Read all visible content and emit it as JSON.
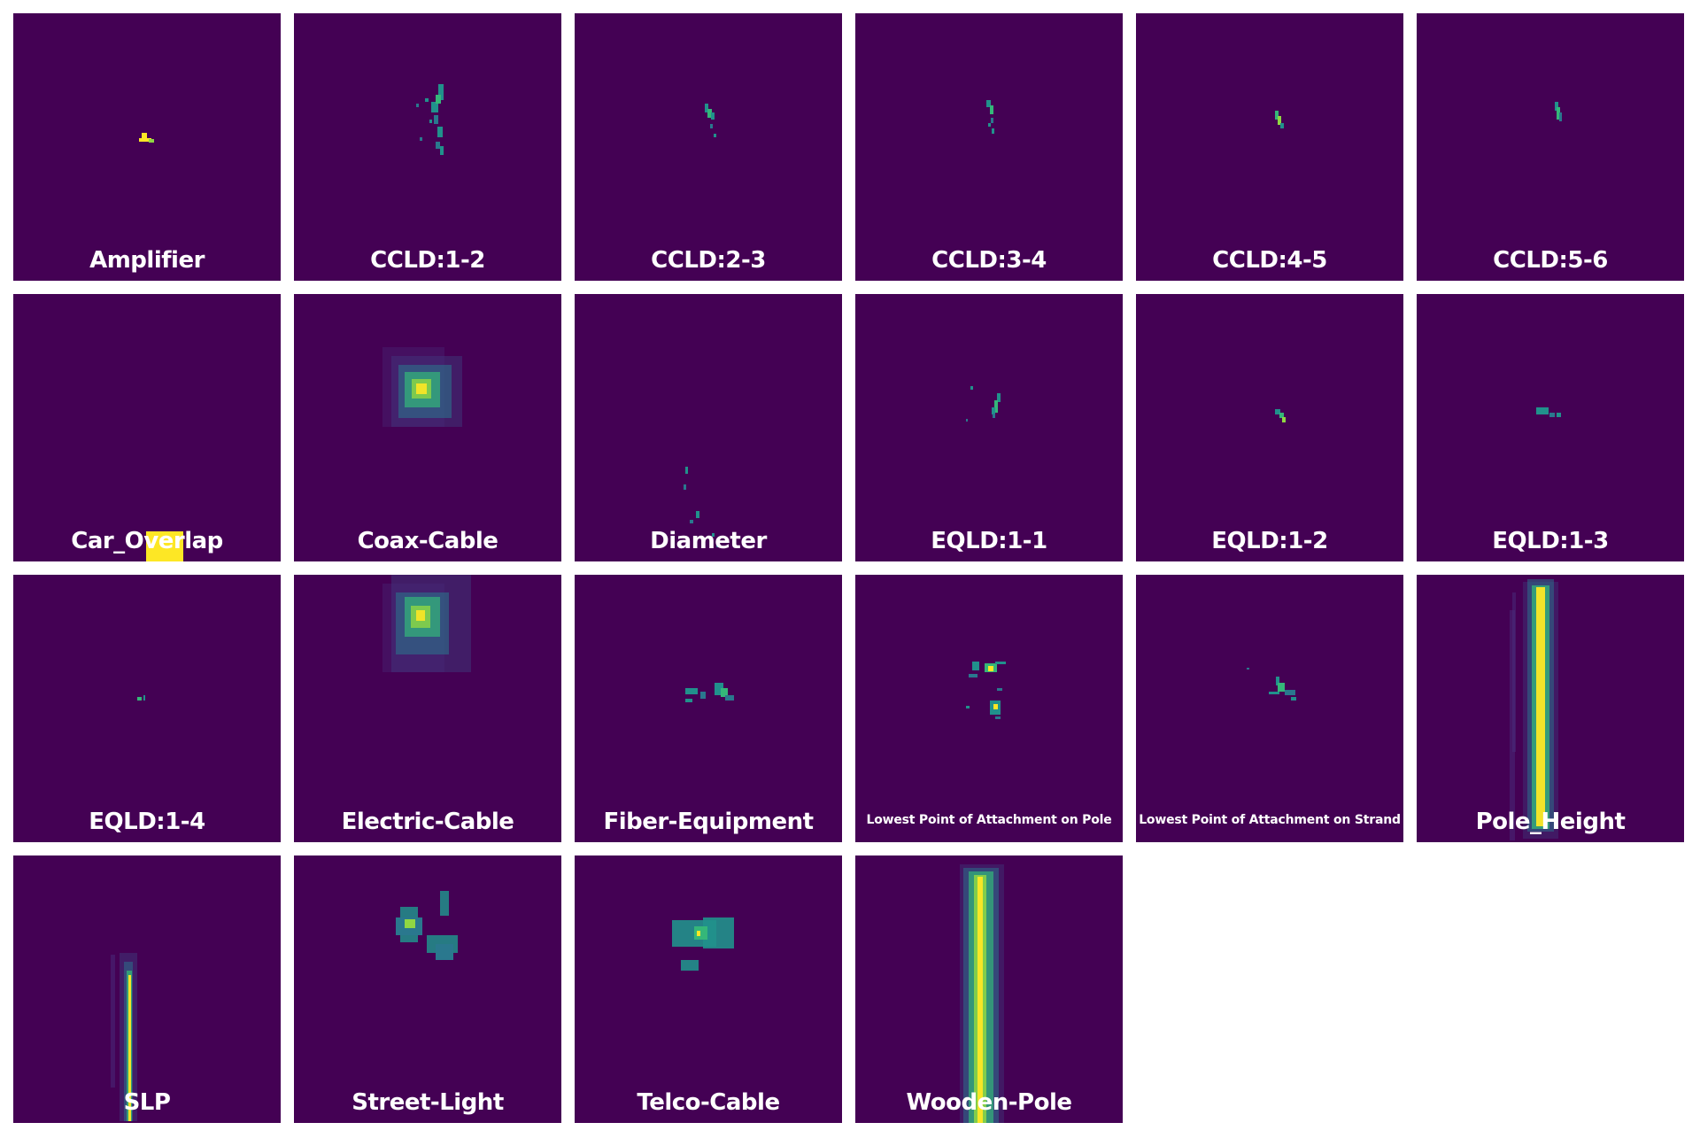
{
  "chart_data": {
    "type": "heatmap",
    "colormap": "viridis",
    "background_color": "#440154",
    "panels": [
      {
        "title": "Amplifier"
      },
      {
        "title": "CCLD:1-2"
      },
      {
        "title": "CCLD:2-3"
      },
      {
        "title": "CCLD:3-4"
      },
      {
        "title": "CCLD:4-5"
      },
      {
        "title": "CCLD:5-6"
      },
      {
        "title": "Car_Overlap"
      },
      {
        "title": "Coax-Cable"
      },
      {
        "title": "Diameter"
      },
      {
        "title": "EQLD:1-1"
      },
      {
        "title": "EQLD:1-2"
      },
      {
        "title": "EQLD:1-3"
      },
      {
        "title": "EQLD:1-4"
      },
      {
        "title": "Electric-Cable"
      },
      {
        "title": "Fiber-Equipment"
      },
      {
        "title": "Lowest Point of Attachment on Pole"
      },
      {
        "title": "Lowest Point of Attachment on Strand"
      },
      {
        "title": "Pole_Height"
      },
      {
        "title": "SLP"
      },
      {
        "title": "Street-Light"
      },
      {
        "title": "Telco-Cable"
      },
      {
        "title": "Wooden-Pole"
      }
    ]
  }
}
